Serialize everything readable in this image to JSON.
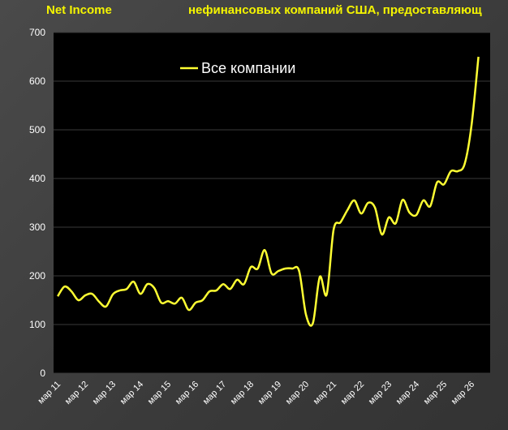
{
  "header": {
    "title_left": "Net Income",
    "title_right": "нефинансовых компаний США, предоставляющ"
  },
  "colors": {
    "line": "#ffff33",
    "plot_bg": "#000000",
    "grid": "#3a3a3a",
    "title": "#f5f500",
    "text": "#ffffff"
  },
  "chart_data": {
    "type": "line",
    "title": "Net Income нефинансовых компаний США, предоставляющ",
    "xlabel": "",
    "ylabel": "",
    "ylim": [
      0,
      700
    ],
    "yticks": [
      0,
      100,
      200,
      300,
      400,
      500,
      600,
      700
    ],
    "grid": true,
    "legend_position": "top-center",
    "categories": [
      "мар 11",
      "мар 12",
      "мар 13",
      "мар 14",
      "мар 15",
      "мар 16",
      "мар 17",
      "мар 18",
      "мар 19",
      "мар 20",
      "мар 21",
      "мар 22",
      "мар 23",
      "мар 24",
      "мар 25",
      "мар 26"
    ],
    "series": [
      {
        "name": "Все компании",
        "x": [
          2011.0,
          2011.25,
          2011.5,
          2011.75,
          2012.0,
          2012.25,
          2012.5,
          2012.75,
          2013.0,
          2013.25,
          2013.5,
          2013.75,
          2014.0,
          2014.25,
          2014.5,
          2014.75,
          2015.0,
          2015.25,
          2015.5,
          2015.75,
          2016.0,
          2016.25,
          2016.5,
          2016.75,
          2017.0,
          2017.25,
          2017.5,
          2017.75,
          2018.0,
          2018.25,
          2018.5,
          2018.75,
          2019.0,
          2019.25,
          2019.5,
          2019.75,
          2020.0,
          2020.25,
          2020.5,
          2020.75,
          2021.0,
          2021.25,
          2021.5,
          2021.75,
          2022.0,
          2022.25,
          2022.5,
          2022.75,
          2023.0,
          2023.25,
          2023.5,
          2023.75,
          2024.0,
          2024.25,
          2024.5,
          2024.75,
          2025.0,
          2025.25,
          2025.5,
          2025.75,
          2026.0,
          2026.25
        ],
        "values": [
          158,
          178,
          168,
          150,
          160,
          163,
          147,
          137,
          162,
          170,
          173,
          188,
          163,
          183,
          175,
          145,
          148,
          143,
          155,
          130,
          145,
          150,
          168,
          170,
          183,
          173,
          192,
          183,
          218,
          215,
          253,
          205,
          210,
          215,
          215,
          210,
          120,
          103,
          198,
          162,
          295,
          310,
          335,
          355,
          328,
          350,
          340,
          285,
          320,
          308,
          356,
          330,
          325,
          355,
          343,
          392,
          388,
          415,
          415,
          430,
          510,
          650
        ]
      }
    ]
  }
}
